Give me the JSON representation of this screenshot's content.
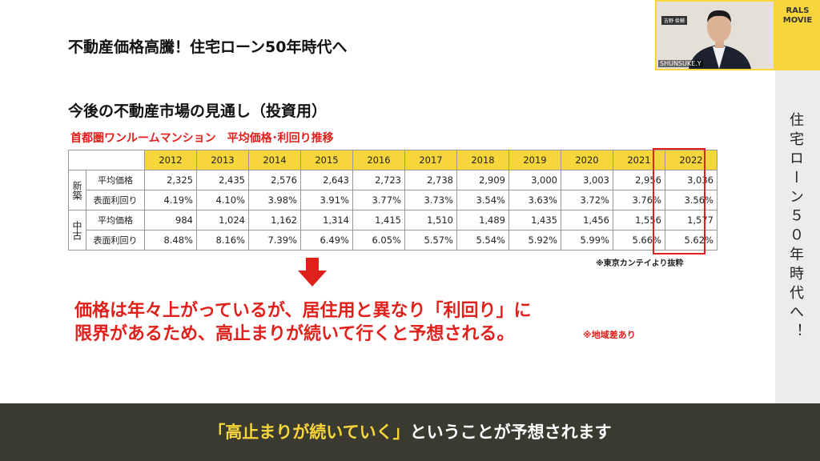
{
  "header": {
    "title": "不動産価格高騰！住宅ローン50年時代へ"
  },
  "sidebar": {
    "vertical_text": "住宅ローン５０年時代へ！",
    "logo": [
      "RALS",
      "MOVIE"
    ]
  },
  "webcam": {
    "name_tag": "吉野 俊輔",
    "label": "SHUNSUKE.Y"
  },
  "slide": {
    "subtitle": "今後の不動産市場の見通し（投資用）",
    "table_title": "首都圏ワンルームマンション　平均価格･利回り推移",
    "table": {
      "years": [
        "2012",
        "2013",
        "2014",
        "2015",
        "2016",
        "2017",
        "2018",
        "2019",
        "2020",
        "2021",
        "2022"
      ],
      "groups": [
        {
          "name": "新築",
          "rows": [
            {
              "label": "平均価格",
              "values": [
                "2,325",
                "2,435",
                "2,576",
                "2,643",
                "2,723",
                "2,738",
                "2,909",
                "3,000",
                "3,003",
                "2,956",
                "3,036"
              ]
            },
            {
              "label": "表面利回り",
              "values": [
                "4.19%",
                "4.10%",
                "3.98%",
                "3.91%",
                "3.77%",
                "3.73%",
                "3.54%",
                "3.63%",
                "3.72%",
                "3.76%",
                "3.56%"
              ]
            }
          ]
        },
        {
          "name": "中古",
          "rows": [
            {
              "label": "平均価格",
              "values": [
                "984",
                "1,024",
                "1,162",
                "1,314",
                "1,415",
                "1,510",
                "1,489",
                "1,435",
                "1,456",
                "1,556",
                "1,577"
              ]
            },
            {
              "label": "表面利回り",
              "values": [
                "8.48%",
                "8.16%",
                "7.39%",
                "6.49%",
                "6.05%",
                "5.57%",
                "5.54%",
                "5.92%",
                "5.99%",
                "5.66%",
                "5.62%"
              ]
            }
          ]
        }
      ]
    },
    "source": "※東京カンテイより抜粋",
    "conclusion": [
      "価格は年々上がっているが、居住用と異なり「利回り」に",
      "限界があるため、高止まりが続いて行くと予想される。"
    ],
    "note": "※地域差あり"
  },
  "caption": {
    "highlight": "「高止まりが続いていく」",
    "rest": "ということが予想されます"
  }
}
